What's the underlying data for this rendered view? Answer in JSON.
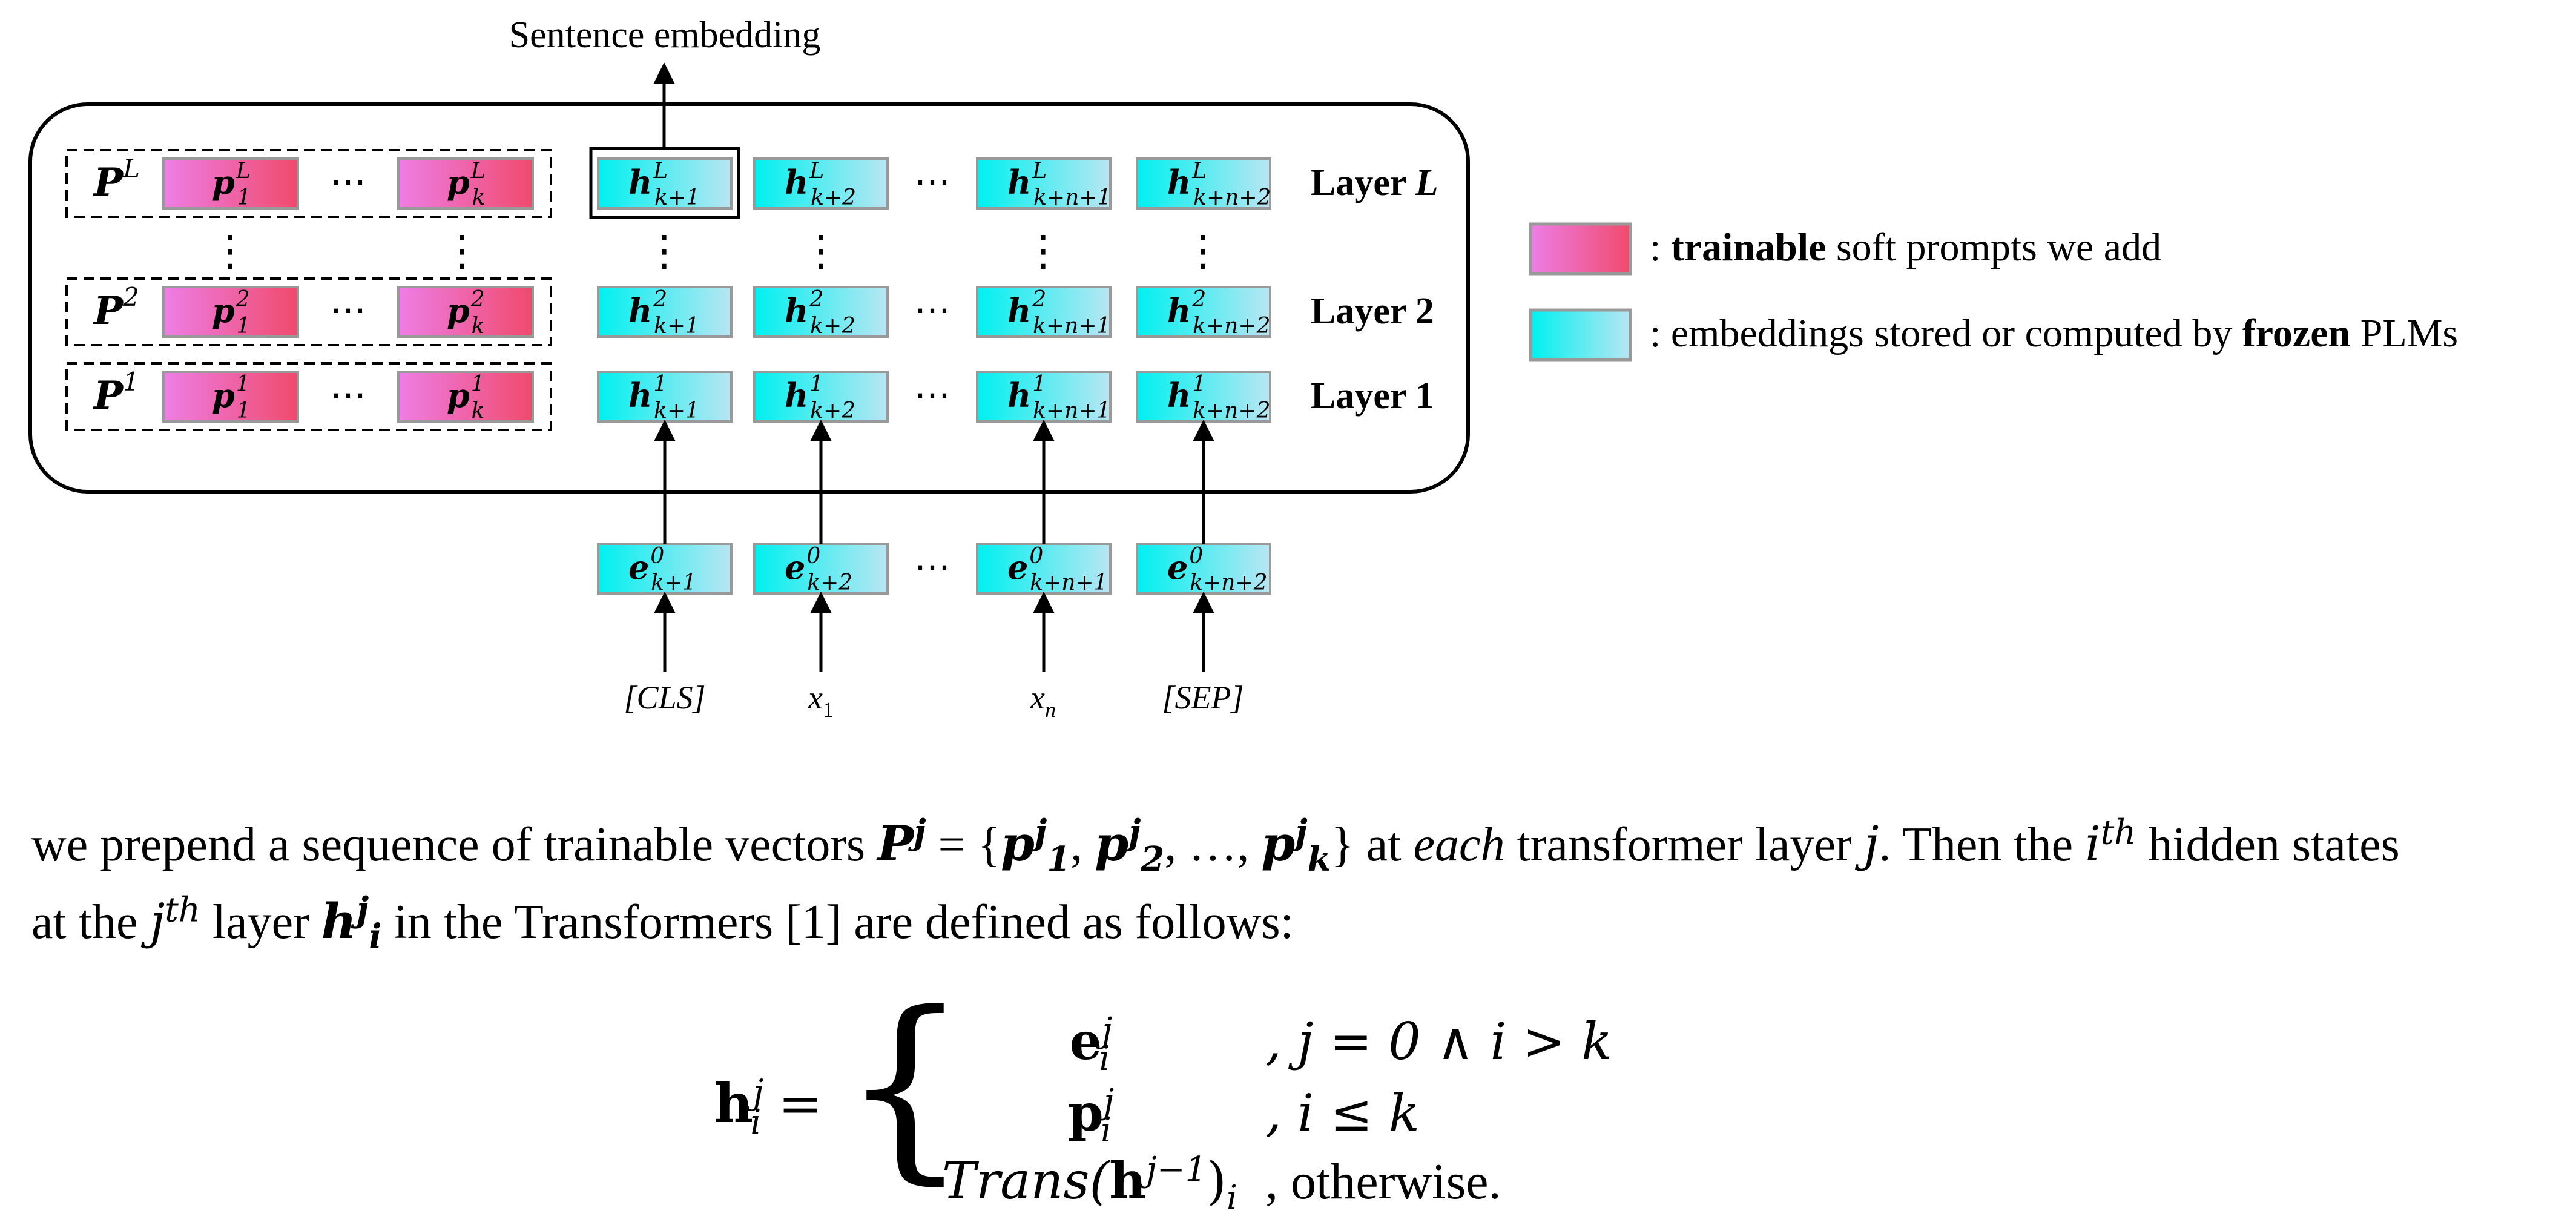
{
  "diagram": {
    "output_label": "Sentence embedding",
    "ellipsis": "⋯",
    "vdots": "⋮",
    "prompt_groups": [
      {
        "label": "P",
        "sup": "L",
        "items": [
          {
            "base": "p",
            "sub": "1",
            "sup": "L"
          },
          {
            "base": "p",
            "sub": "k",
            "sup": "L"
          }
        ]
      },
      {
        "label": "P",
        "sup": "2",
        "items": [
          {
            "base": "p",
            "sub": "1",
            "sup": "2"
          },
          {
            "base": "p",
            "sub": "k",
            "sup": "2"
          }
        ]
      },
      {
        "label": "P",
        "sup": "1",
        "items": [
          {
            "base": "p",
            "sub": "1",
            "sup": "1"
          },
          {
            "base": "p",
            "sub": "k",
            "sup": "1"
          }
        ]
      }
    ],
    "hidden_rows": [
      {
        "sup": "L",
        "items": [
          "k+1",
          "k+2",
          "k+n+1",
          "k+n+2"
        ],
        "layer_label": "Layer ",
        "layer_var": "L"
      },
      {
        "sup": "2",
        "items": [
          "k+1",
          "k+2",
          "k+n+1",
          "k+n+2"
        ],
        "layer_label": "Layer 2",
        "layer_var": ""
      },
      {
        "sup": "1",
        "items": [
          "k+1",
          "k+2",
          "k+n+1",
          "k+n+2"
        ],
        "layer_label": "Layer 1",
        "layer_var": ""
      }
    ],
    "hidden_base": "h",
    "embedding_row": {
      "base": "e",
      "sup": "0",
      "items": [
        "k+1",
        "k+2",
        "k+n+1",
        "k+n+2"
      ]
    },
    "inputs": [
      "[CLS]",
      "x",
      "x",
      "[SEP]"
    ],
    "input_subs": [
      "",
      "1",
      "n",
      ""
    ],
    "legend": [
      {
        "bold": "trainable",
        "text": " soft prompts we add",
        "prefix": ": ",
        "swatch": "trainable"
      },
      {
        "bold": "frozen",
        "text_before": "embeddings stored or computed by ",
        "text_after": " PLMs",
        "prefix": ": ",
        "swatch": "frozen"
      }
    ],
    "colors": {
      "trainable_start": "#ee7ee6",
      "trainable_end": "#f04a6c",
      "frozen_start": "#00f0f0",
      "frozen_end": "#b9e6f2",
      "box_border": "#999999"
    }
  },
  "paragraph": {
    "t1": "we prepend a sequence of trainable vectors ",
    "math1": "P",
    "math1_sup": "j",
    "t2": " = {",
    "math2": "p",
    "t3": ", ",
    "t4": ", …, ",
    "t5": "} at ",
    "t6": "each",
    "t7": " transformer layer ",
    "t8": "j",
    "t9": ". Then the ",
    "t10": "i",
    "t11": "th",
    "t12": " hidden states",
    "t13": "at the ",
    "t14": "j",
    "t15": "th",
    "t16": " layer ",
    "t17": "h",
    "t18": " in the Transformers [1] are defined as follows:",
    "sub1": "1",
    "sub2": "2",
    "subk": "k",
    "supj": "j",
    "subi": "i"
  },
  "formula": {
    "lhs": "h",
    "lhs_sup": "j",
    "lhs_sub": "i",
    "eq": " = ",
    "rows": [
      {
        "expr_base": "e",
        "expr_sup": "j",
        "expr_sub": "i",
        "cond": ", j = 0 ∧ i > k"
      },
      {
        "expr_base": "p",
        "expr_sup": "j",
        "expr_sub": "i",
        "cond": ", i ≤ k"
      },
      {
        "expr_text": "Trans(",
        "expr_bold": "h",
        "expr_sup": "j−1",
        "expr_close": ")",
        "expr_sub": "i",
        "cond": ", otherwise."
      }
    ]
  }
}
